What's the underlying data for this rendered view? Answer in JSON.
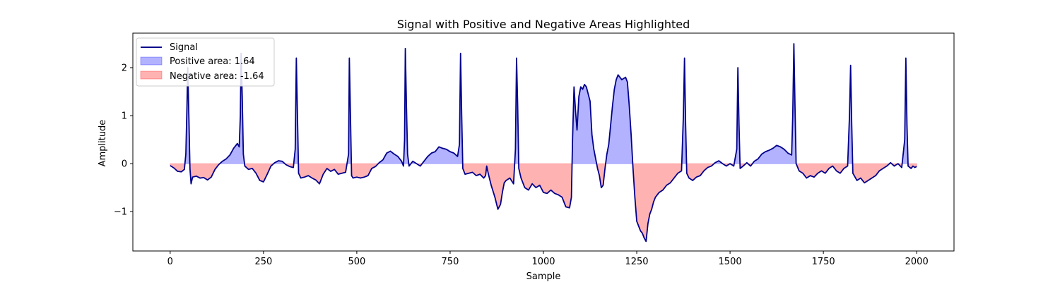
{
  "chart_data": {
    "type": "area",
    "title": "Signal with Positive and Negative Areas Highlighted",
    "xlabel": "Sample",
    "ylabel": "Amplitude",
    "xlim": [
      -100,
      2100
    ],
    "ylim": [
      -1.82,
      2.72
    ],
    "xticks": [
      0,
      250,
      500,
      750,
      1000,
      1250,
      1500,
      1750,
      2000
    ],
    "yticks": [
      -1,
      0,
      1,
      2
    ],
    "ytick_labels": [
      "−1",
      "0",
      "1",
      "2"
    ],
    "grid": false,
    "legend_position": "top-left",
    "colors": {
      "signal": "#00008b",
      "positive_fill": "#0000ff",
      "negative_fill": "#ff0000"
    },
    "series": [
      {
        "name": "Signal",
        "kind": "line",
        "points": [
          [
            0,
            -0.04
          ],
          [
            10,
            -0.09
          ],
          [
            20,
            -0.16
          ],
          [
            30,
            -0.17
          ],
          [
            38,
            -0.12
          ],
          [
            42,
            0.2
          ],
          [
            45,
            1.2
          ],
          [
            47,
            2.0
          ],
          [
            50,
            1.0
          ],
          [
            53,
            -0.1
          ],
          [
            56,
            -0.42
          ],
          [
            60,
            -0.28
          ],
          [
            70,
            -0.26
          ],
          [
            80,
            -0.3
          ],
          [
            90,
            -0.29
          ],
          [
            100,
            -0.34
          ],
          [
            110,
            -0.28
          ],
          [
            120,
            -0.12
          ],
          [
            130,
            -0.02
          ],
          [
            140,
            0.05
          ],
          [
            150,
            0.1
          ],
          [
            160,
            0.18
          ],
          [
            170,
            0.32
          ],
          [
            180,
            0.42
          ],
          [
            185,
            0.35
          ],
          [
            188,
            1.0
          ],
          [
            190,
            2.3
          ],
          [
            193,
            1.4
          ],
          [
            196,
            0.2
          ],
          [
            200,
            -0.05
          ],
          [
            210,
            -0.12
          ],
          [
            220,
            -0.1
          ],
          [
            230,
            -0.2
          ],
          [
            240,
            -0.35
          ],
          [
            250,
            -0.38
          ],
          [
            260,
            -0.22
          ],
          [
            270,
            -0.05
          ],
          [
            280,
            0.02
          ],
          [
            290,
            0.06
          ],
          [
            300,
            0.05
          ],
          [
            310,
            -0.02
          ],
          [
            320,
            -0.06
          ],
          [
            330,
            -0.08
          ],
          [
            335,
            0.3
          ],
          [
            338,
            2.2
          ],
          [
            341,
            1.0
          ],
          [
            344,
            -0.2
          ],
          [
            350,
            -0.3
          ],
          [
            360,
            -0.28
          ],
          [
            370,
            -0.25
          ],
          [
            380,
            -0.3
          ],
          [
            390,
            -0.34
          ],
          [
            400,
            -0.42
          ],
          [
            410,
            -0.22
          ],
          [
            420,
            -0.1
          ],
          [
            430,
            -0.16
          ],
          [
            440,
            -0.12
          ],
          [
            450,
            -0.22
          ],
          [
            460,
            -0.2
          ],
          [
            470,
            -0.18
          ],
          [
            478,
            0.2
          ],
          [
            480,
            2.2
          ],
          [
            483,
            1.0
          ],
          [
            486,
            -0.25
          ],
          [
            490,
            -0.3
          ],
          [
            500,
            -0.28
          ],
          [
            510,
            -0.3
          ],
          [
            520,
            -0.28
          ],
          [
            530,
            -0.25
          ],
          [
            540,
            -0.1
          ],
          [
            550,
            -0.06
          ],
          [
            560,
            0.02
          ],
          [
            570,
            0.08
          ],
          [
            580,
            0.22
          ],
          [
            590,
            0.26
          ],
          [
            600,
            0.2
          ],
          [
            610,
            0.15
          ],
          [
            620,
            0.05
          ],
          [
            625,
            -0.05
          ],
          [
            628,
            0.5
          ],
          [
            630,
            2.4
          ],
          [
            633,
            1.2
          ],
          [
            636,
            0.2
          ],
          [
            640,
            -0.05
          ],
          [
            650,
            0.05
          ],
          [
            660,
            0.0
          ],
          [
            670,
            -0.05
          ],
          [
            680,
            0.05
          ],
          [
            690,
            0.15
          ],
          [
            700,
            0.22
          ],
          [
            710,
            0.25
          ],
          [
            720,
            0.35
          ],
          [
            730,
            0.32
          ],
          [
            740,
            0.3
          ],
          [
            750,
            0.25
          ],
          [
            760,
            0.22
          ],
          [
            770,
            0.15
          ],
          [
            775,
            0.4
          ],
          [
            778,
            2.3
          ],
          [
            781,
            1.0
          ],
          [
            784,
            -0.1
          ],
          [
            790,
            -0.22
          ],
          [
            800,
            -0.2
          ],
          [
            810,
            -0.18
          ],
          [
            820,
            -0.25
          ],
          [
            830,
            -0.22
          ],
          [
            840,
            -0.3
          ],
          [
            845,
            -0.25
          ],
          [
            848,
            -0.05
          ],
          [
            852,
            -0.2
          ],
          [
            860,
            -0.45
          ],
          [
            870,
            -0.7
          ],
          [
            878,
            -0.95
          ],
          [
            885,
            -0.85
          ],
          [
            890,
            -0.6
          ],
          [
            895,
            -0.4
          ],
          [
            900,
            -0.35
          ],
          [
            910,
            -0.3
          ],
          [
            920,
            -0.42
          ],
          [
            925,
            0.3
          ],
          [
            928,
            2.2
          ],
          [
            931,
            1.2
          ],
          [
            934,
            -0.1
          ],
          [
            940,
            -0.3
          ],
          [
            950,
            -0.5
          ],
          [
            960,
            -0.55
          ],
          [
            970,
            -0.42
          ],
          [
            980,
            -0.5
          ],
          [
            990,
            -0.45
          ],
          [
            1000,
            -0.6
          ],
          [
            1010,
            -0.62
          ],
          [
            1020,
            -0.55
          ],
          [
            1030,
            -0.62
          ],
          [
            1040,
            -0.65
          ],
          [
            1050,
            -0.7
          ],
          [
            1060,
            -0.9
          ],
          [
            1070,
            -0.92
          ],
          [
            1075,
            -0.7
          ],
          [
            1078,
            0.5
          ],
          [
            1082,
            1.6
          ],
          [
            1086,
            1.1
          ],
          [
            1090,
            0.7
          ],
          [
            1095,
            1.4
          ],
          [
            1100,
            1.6
          ],
          [
            1105,
            1.55
          ],
          [
            1110,
            1.65
          ],
          [
            1115,
            1.6
          ],
          [
            1120,
            1.45
          ],
          [
            1125,
            1.3
          ],
          [
            1130,
            0.6
          ],
          [
            1135,
            0.3
          ],
          [
            1140,
            0.1
          ],
          [
            1145,
            -0.1
          ],
          [
            1150,
            -0.25
          ],
          [
            1155,
            -0.5
          ],
          [
            1160,
            -0.45
          ],
          [
            1165,
            -0.1
          ],
          [
            1170,
            0.2
          ],
          [
            1175,
            0.4
          ],
          [
            1180,
            0.8
          ],
          [
            1185,
            1.2
          ],
          [
            1190,
            1.55
          ],
          [
            1195,
            1.75
          ],
          [
            1200,
            1.85
          ],
          [
            1210,
            1.75
          ],
          [
            1220,
            1.8
          ],
          [
            1225,
            1.7
          ],
          [
            1230,
            1.2
          ],
          [
            1235,
            0.6
          ],
          [
            1240,
            -0.1
          ],
          [
            1245,
            -0.7
          ],
          [
            1250,
            -1.2
          ],
          [
            1255,
            -1.3
          ],
          [
            1260,
            -1.4
          ],
          [
            1265,
            -1.45
          ],
          [
            1270,
            -1.55
          ],
          [
            1275,
            -1.62
          ],
          [
            1280,
            -1.25
          ],
          [
            1285,
            -1.05
          ],
          [
            1290,
            -0.95
          ],
          [
            1295,
            -0.8
          ],
          [
            1300,
            -0.7
          ],
          [
            1310,
            -0.6
          ],
          [
            1320,
            -0.55
          ],
          [
            1330,
            -0.45
          ],
          [
            1340,
            -0.4
          ],
          [
            1350,
            -0.3
          ],
          [
            1360,
            -0.2
          ],
          [
            1370,
            -0.15
          ],
          [
            1375,
            1.0
          ],
          [
            1378,
            2.2
          ],
          [
            1381,
            0.8
          ],
          [
            1384,
            -0.2
          ],
          [
            1390,
            -0.3
          ],
          [
            1400,
            -0.35
          ],
          [
            1410,
            -0.28
          ],
          [
            1420,
            -0.25
          ],
          [
            1430,
            -0.15
          ],
          [
            1440,
            -0.08
          ],
          [
            1450,
            -0.05
          ],
          [
            1460,
            0.02
          ],
          [
            1470,
            0.06
          ],
          [
            1480,
            0.0
          ],
          [
            1490,
            -0.05
          ],
          [
            1500,
            0.0
          ],
          [
            1510,
            -0.05
          ],
          [
            1518,
            0.3
          ],
          [
            1521,
            2.0
          ],
          [
            1524,
            0.8
          ],
          [
            1527,
            -0.1
          ],
          [
            1535,
            -0.05
          ],
          [
            1545,
            0.02
          ],
          [
            1555,
            -0.05
          ],
          [
            1565,
            0.05
          ],
          [
            1575,
            0.1
          ],
          [
            1585,
            0.2
          ],
          [
            1595,
            0.25
          ],
          [
            1605,
            0.28
          ],
          [
            1615,
            0.32
          ],
          [
            1625,
            0.38
          ],
          [
            1635,
            0.35
          ],
          [
            1645,
            0.3
          ],
          [
            1655,
            0.22
          ],
          [
            1665,
            0.18
          ],
          [
            1668,
            1.0
          ],
          [
            1671,
            2.5
          ],
          [
            1674,
            1.2
          ],
          [
            1677,
            0.0
          ],
          [
            1685,
            -0.15
          ],
          [
            1695,
            -0.2
          ],
          [
            1705,
            -0.3
          ],
          [
            1715,
            -0.25
          ],
          [
            1725,
            -0.28
          ],
          [
            1735,
            -0.2
          ],
          [
            1745,
            -0.15
          ],
          [
            1755,
            -0.2
          ],
          [
            1765,
            -0.1
          ],
          [
            1775,
            -0.05
          ],
          [
            1785,
            -0.15
          ],
          [
            1795,
            -0.2
          ],
          [
            1805,
            -0.1
          ],
          [
            1815,
            -0.05
          ],
          [
            1820,
            1.0
          ],
          [
            1823,
            2.05
          ],
          [
            1826,
            0.8
          ],
          [
            1829,
            -0.2
          ],
          [
            1840,
            -0.35
          ],
          [
            1850,
            -0.3
          ],
          [
            1860,
            -0.4
          ],
          [
            1870,
            -0.35
          ],
          [
            1880,
            -0.3
          ],
          [
            1890,
            -0.25
          ],
          [
            1900,
            -0.15
          ],
          [
            1910,
            -0.1
          ],
          [
            1920,
            -0.05
          ],
          [
            1930,
            0.02
          ],
          [
            1940,
            -0.05
          ],
          [
            1950,
            0.0
          ],
          [
            1960,
            -0.08
          ],
          [
            1968,
            0.5
          ],
          [
            1971,
            2.2
          ],
          [
            1974,
            0.8
          ],
          [
            1977,
            -0.05
          ],
          [
            1985,
            -0.1
          ],
          [
            1990,
            -0.05
          ],
          [
            1995,
            -0.08
          ],
          [
            2000,
            -0.06
          ]
        ]
      },
      {
        "name": "Positive area: 1.64",
        "kind": "fill_positive"
      },
      {
        "name": "Negative area: -1.64",
        "kind": "fill_negative"
      }
    ]
  }
}
